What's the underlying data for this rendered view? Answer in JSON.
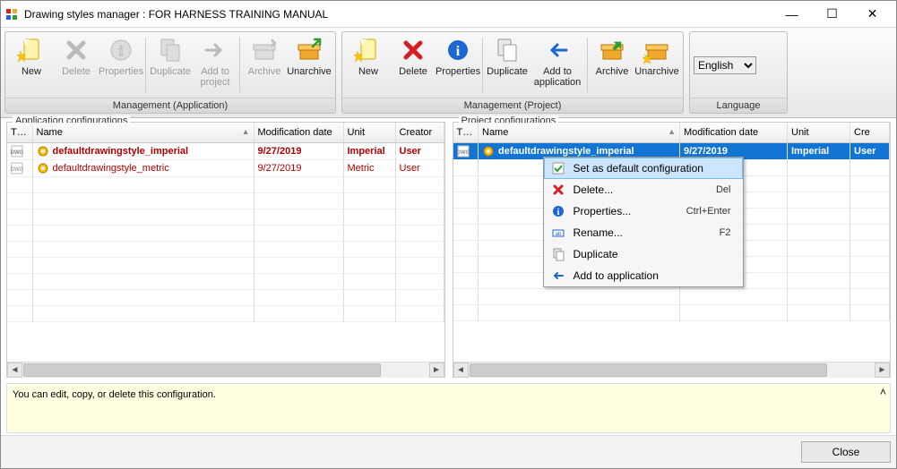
{
  "window": {
    "title": "Drawing styles manager : FOR HARNESS TRAINING MANUAL"
  },
  "ribbon": {
    "app": {
      "caption": "Management (Application)",
      "new": "New",
      "delete": "Delete",
      "properties": "Properties",
      "duplicate": "Duplicate",
      "add_to_project": "Add to\nproject",
      "archive": "Archive",
      "unarchive": "Unarchive"
    },
    "proj": {
      "caption": "Management (Project)",
      "new": "New",
      "delete": "Delete",
      "properties": "Properties",
      "duplicate": "Duplicate",
      "add_to_application": "Add to\napplication",
      "archive": "Archive",
      "unarchive": "Unarchive"
    },
    "lang": {
      "caption": "Language",
      "value": "English"
    }
  },
  "tables": {
    "app_caption": "Application configurations",
    "proj_caption": "Project configurations",
    "cols": {
      "tag": "T…",
      "name": "Name",
      "mod": "Modification date",
      "unit": "Unit",
      "creator_app": "Creator",
      "creator_proj": "Cre"
    },
    "app_rows": [
      {
        "name": "defaultdrawingstyle_imperial",
        "date": "9/27/2019",
        "unit": "Imperial",
        "creator": "User",
        "bold": true
      },
      {
        "name": "defaultdrawingstyle_metric",
        "date": "9/27/2019",
        "unit": "Metric",
        "creator": "User",
        "bold": false
      }
    ],
    "proj_rows": [
      {
        "name": "defaultdrawingstyle_imperial",
        "date": "9/27/2019",
        "unit": "Imperial",
        "creator": "User",
        "bold": true,
        "selected": true
      }
    ]
  },
  "context": {
    "items": [
      {
        "icon": "setdefault",
        "label": "Set as default configuration",
        "key": "",
        "hl": true
      },
      {
        "icon": "delete",
        "label": "Delete...",
        "key": "Del"
      },
      {
        "icon": "info",
        "label": "Properties...",
        "key": "Ctrl+Enter"
      },
      {
        "icon": "rename",
        "label": "Rename...",
        "key": "F2"
      },
      {
        "icon": "duplicate",
        "label": "Duplicate",
        "key": ""
      },
      {
        "icon": "back",
        "label": "Add to application",
        "key": ""
      }
    ]
  },
  "info": {
    "text": "You can edit, copy, or delete this configuration."
  },
  "footer": {
    "close": "Close"
  },
  "colors": {
    "red": "#b00000",
    "sel_bg": "#1274d3",
    "info_bg": "#ffffe1",
    "ctx_hl_bg": "#cde6ff",
    "ctx_hl_border": "#7abae8"
  },
  "icons": {
    "new_fill": "#fff4b0",
    "new_stroke": "#d4a900",
    "star": "#ffc107",
    "delete": "#d42020",
    "info": "#1e66d0",
    "archive_box": "#f0a830",
    "dup_fill": "#e9e9e9",
    "back_arrow": "#1e66d0",
    "green_check": "#2e9e2e"
  }
}
